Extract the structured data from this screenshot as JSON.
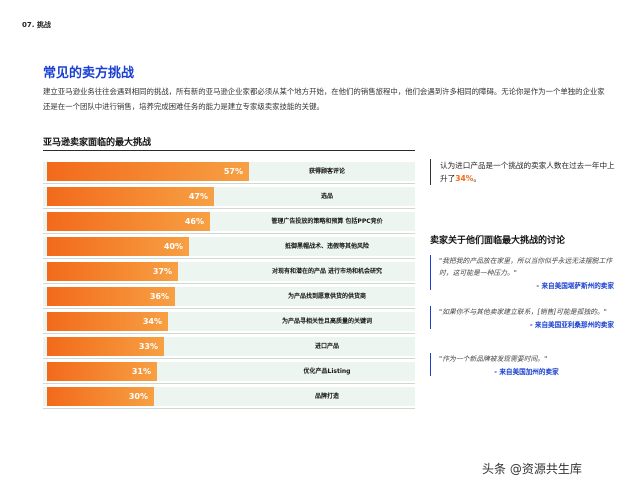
{
  "section_tag": "07. 挑战",
  "page_title": "常见的卖方挑战",
  "intro": "建立亚马逊业务往往会遇到相同的挑战，所有新的亚马逊企业家都必须从某个地方开始，在他们的销售旅程中，他们会遇到许多相同的障碍。无论你是作为一个单独的企业家还是在一个团队中进行销售，培养完成困难任务的能力是建立专家级卖家技能的关键。",
  "chart_title": "亚马逊卖家面临的最大挑战",
  "chart_data": {
    "type": "bar",
    "title": "亚马逊卖家面临的最大挑战",
    "categories": [
      "获得顾客评论",
      "选品",
      "管理广告投放的策略和预算 包括PPC竞价",
      "抵御黑帽战术、违假等其他风险",
      "对现有和潜在的产品 进行市场和机会研究",
      "为产品找到愿意供货的供货商",
      "为产品寻相关性且高质量的关键词",
      "进口产品",
      "优化产品Listing",
      "品牌打造"
    ],
    "values": [
      57,
      47,
      46,
      40,
      37,
      36,
      34,
      33,
      31,
      30
    ],
    "value_labels": [
      "57%",
      "47%",
      "46%",
      "40%",
      "37%",
      "36%",
      "34%",
      "33%",
      "31%",
      "30%"
    ],
    "unit": "%",
    "xlim": [
      0,
      100
    ],
    "fill_colors": [
      "#f26a1b",
      "#f7a043"
    ],
    "track_color": "#ecf5f0"
  },
  "stat": {
    "text_before": "认为进口产品是一个挑战的卖家人数在过去一年中上升了",
    "highlight": "34%",
    "text_after": "。",
    "highlight_color": "#f26a1b"
  },
  "quotes_title": "卖家关于他们面临最大挑战的讨论",
  "quotes": [
    {
      "text": "\"我把我的产品放在家里，所以当你似乎永远无法摆脱工作时，这可能是一种压力。\"",
      "source": "- 来自美国堪萨斯州的卖家"
    },
    {
      "text": "\"如果你不与其他卖家建立联系，[销售]可能是孤独的。\"",
      "source": "- 来自美国亚利桑那州的卖家"
    },
    {
      "text": "\"作为一个新品牌被发现需要时间。\"",
      "source": "- 来自美国加州的卖家"
    }
  ],
  "watermark": "头条 @资源共生库",
  "colors": {
    "accent_blue": "#1a3fd1",
    "accent_orange": "#f26a1b"
  }
}
